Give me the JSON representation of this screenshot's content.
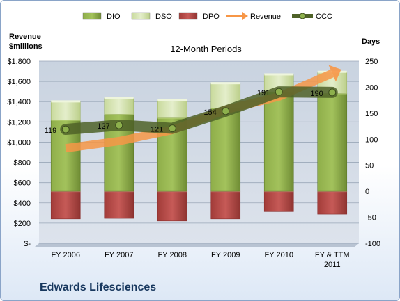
{
  "chart_data": {
    "type": "bar",
    "title": "12-Month Periods",
    "left_axis": {
      "label_lines": [
        "Revenue",
        "$millions"
      ],
      "min": 0,
      "max": 1800,
      "step": 200,
      "tick_labels": [
        "$-",
        "$200",
        "$400",
        "$600",
        "$800",
        "$1,000",
        "$1,200",
        "$1,400",
        "$1,600",
        "$1,800"
      ]
    },
    "right_axis": {
      "label": "Days",
      "min": -100,
      "max": 250,
      "step": 50,
      "tick_labels": [
        "-100",
        "-50",
        "0",
        "50",
        "100",
        "150",
        "200",
        "250"
      ]
    },
    "categories": [
      [
        "FY 2006"
      ],
      [
        "FY 2007"
      ],
      [
        "FY 2008"
      ],
      [
        "FY 2009"
      ],
      [
        "FY 2010"
      ],
      [
        "FY & TTM",
        "2011"
      ]
    ],
    "legend": [
      "DIO",
      "DSO",
      "DPO",
      "Revenue",
      "CCC"
    ],
    "series": {
      "DIO": [
        137,
        148,
        141,
        160,
        191,
        188
      ],
      "DSO": [
        35,
        31,
        33,
        47,
        33,
        41
      ],
      "DPO": [
        -53,
        -52,
        -57,
        -53,
        -39,
        -44
      ],
      "Revenue": [
        940,
        1010,
        1120,
        1320,
        1450,
        1680
      ],
      "CCC": [
        119,
        127,
        121,
        154,
        191,
        190
      ]
    },
    "ccc_labels": [
      "119",
      "127",
      "121",
      "154",
      "191",
      "190"
    ],
    "colors": {
      "DIO": "#77933c",
      "DSO": "#d7e4bd",
      "DPO": "#c0504d",
      "Revenue": "#f79646",
      "CCC": "#4f6228"
    },
    "grid": true,
    "legend_position": "top"
  },
  "company": "Edwards Lifesciences"
}
